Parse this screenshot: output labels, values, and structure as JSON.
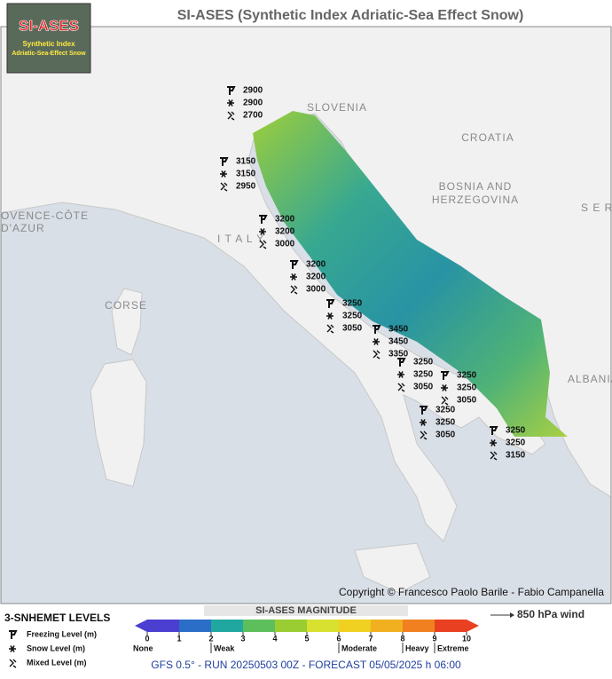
{
  "title": "SI-ASES (Synthetic Index Adriatic-Sea Effect Snow)",
  "logo": {
    "title": "SI-ASES",
    "line1": "Synthetic Index",
    "line2": "Adriatic-Sea-Effect Snow"
  },
  "map_labels": [
    "SLOVENIA",
    "CROATIA",
    "BOSNIA AND",
    "HERZEGOVINA",
    "S E R",
    "I T A L Y",
    "CORSE",
    "OVENCE-CÔTE",
    "D'AZUR",
    "ALBANIA"
  ],
  "stations": [
    {
      "freezing": 2900,
      "snow": 2900,
      "mixed": 2700
    },
    {
      "freezing": 3150,
      "snow": 3150,
      "mixed": 2950
    },
    {
      "freezing": 3200,
      "snow": 3200,
      "mixed": 3000
    },
    {
      "freezing": 3200,
      "snow": 3200,
      "mixed": 3000
    },
    {
      "freezing": 3250,
      "snow": 3250,
      "mixed": 3050
    },
    {
      "freezing": 3450,
      "snow": 3450,
      "mixed": 3350
    },
    {
      "freezing": 3250,
      "snow": 3250,
      "mixed": 3050
    },
    {
      "freezing": 3250,
      "snow": 3250,
      "mixed": 3050
    },
    {
      "freezing": 3250,
      "snow": 3250,
      "mixed": 3050
    },
    {
      "freezing": 3250,
      "snow": 3250,
      "mixed": 3150
    }
  ],
  "copyright": "Copyright © Francesco Paolo Barile - Fabio Campanella",
  "levels_legend": {
    "title": "3-SNHEMET LEVELS",
    "items": [
      "Freezing Level (m)",
      "Snow Level (m)",
      "Mixed Level (m)"
    ]
  },
  "magnitude": {
    "title": "SI-ASES MAGNITUDE",
    "ticks": [
      0,
      1,
      2,
      3,
      4,
      5,
      6,
      7,
      8,
      9,
      10
    ],
    "colors": [
      "#4a3fd0",
      "#2a6ec8",
      "#20a8a0",
      "#5cbf5c",
      "#9acd32",
      "#d8e030",
      "#f0d020",
      "#f0b020",
      "#f08020",
      "#e84020"
    ],
    "classes": [
      "None",
      "Weak",
      "Moderate",
      "Heavy",
      "Extreme"
    ]
  },
  "wind_legend": "850 hPa wind",
  "footer": "GFS 0.5° - RUN 20250503 00Z - FORECAST 05/05/2025 h 06:00"
}
